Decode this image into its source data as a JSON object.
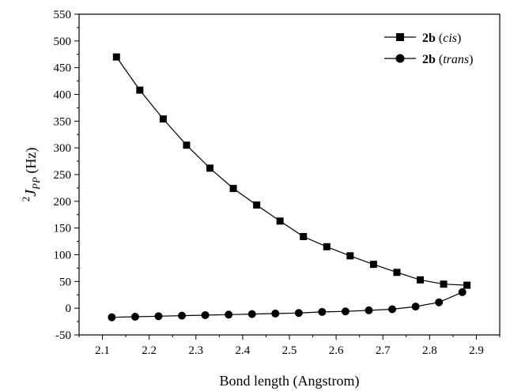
{
  "chart_data": {
    "type": "line",
    "xlabel": "Bond length (Angstrom)",
    "ylabel": {
      "superscript": "2",
      "symbol": "J",
      "subscript": "PP",
      "unit": " (Hz)"
    },
    "xlim": [
      2.05,
      2.95
    ],
    "ylim": [
      -50,
      550
    ],
    "x_ticks": [
      "2.1",
      "2.2",
      "2.3",
      "2.4",
      "2.5",
      "2.6",
      "2.7",
      "2.8",
      "2.9"
    ],
    "y_ticks": [
      "-50",
      "0",
      "50",
      "100",
      "150",
      "200",
      "250",
      "300",
      "350",
      "400",
      "450",
      "500",
      "550"
    ],
    "grid": false,
    "legend_position": "top-right",
    "series": [
      {
        "name": "2b (cis)",
        "legend": {
          "bold": "2b",
          "open": " (",
          "italic": "cis",
          "close": ")"
        },
        "marker": "square",
        "x": [
          2.13,
          2.18,
          2.23,
          2.28,
          2.33,
          2.38,
          2.43,
          2.48,
          2.53,
          2.58,
          2.63,
          2.68,
          2.73,
          2.78,
          2.83,
          2.88
        ],
        "y": [
          470,
          408,
          354,
          305,
          262,
          224,
          193,
          163,
          134,
          115,
          98,
          82,
          67,
          53,
          45,
          43
        ]
      },
      {
        "name": "2b (trans)",
        "legend": {
          "bold": "2b",
          "open": " (",
          "italic": "trans",
          "close": ")"
        },
        "marker": "circle",
        "x": [
          2.12,
          2.17,
          2.22,
          2.27,
          2.32,
          2.37,
          2.42,
          2.47,
          2.52,
          2.57,
          2.62,
          2.67,
          2.72,
          2.77,
          2.82,
          2.87
        ],
        "y": [
          -17,
          -16,
          -15,
          -14,
          -13,
          -12,
          -11,
          -10,
          -9,
          -7,
          -6,
          -4,
          -2,
          3,
          11,
          30
        ]
      }
    ]
  }
}
